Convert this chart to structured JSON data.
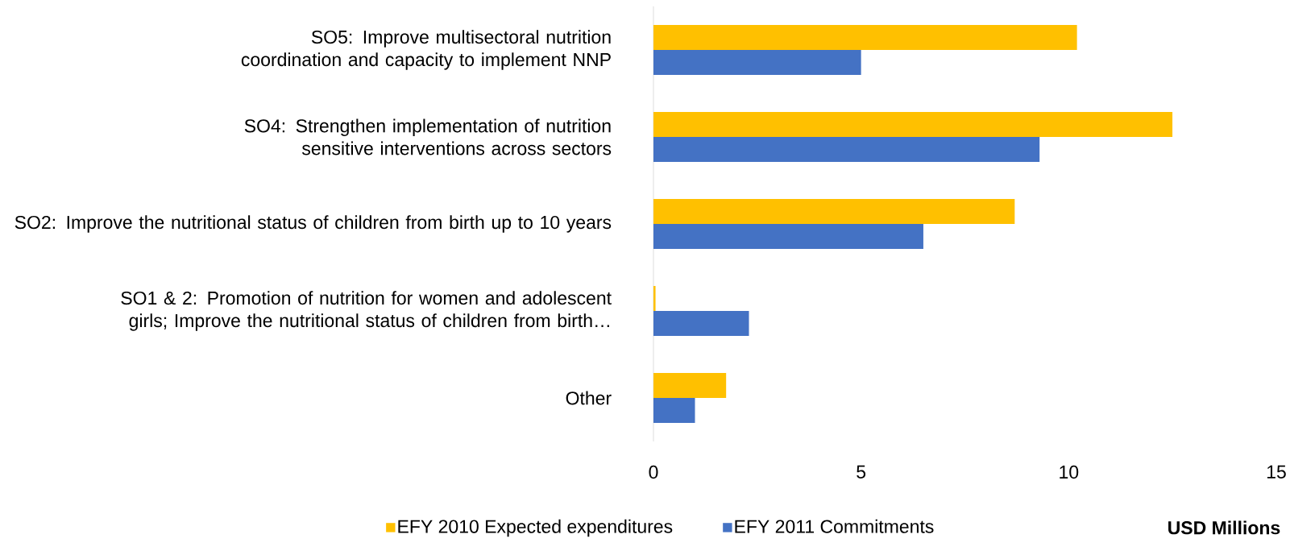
{
  "chart_data": {
    "type": "bar",
    "orientation": "horizontal",
    "categories": [
      "SO5: Improve multisectoral nutrition coordination and capacity to implement NNP",
      "SO4: Strengthen implementation of nutrition sensitive interventions across sectors",
      "SO2: Improve the nutritional status of children from birth up to 10 years",
      "SO1 & 2: Promotion of nutrition for women and adolescent girls; Improve the nutritional status of children from birth…",
      "Other"
    ],
    "series": [
      {
        "name": "EFY 2010 Expected expenditures",
        "color": "#ffc000",
        "values": [
          10.2,
          12.5,
          8.7,
          0.05,
          1.75
        ]
      },
      {
        "name": "EFY 2011 Commitments",
        "color": "#4472c4",
        "values": [
          5.0,
          9.3,
          6.5,
          2.3,
          1.0
        ]
      }
    ],
    "xlabel": "USD Millions",
    "xlim": [
      0,
      15
    ],
    "xticks": [
      0,
      5,
      10,
      15
    ],
    "legend": "bottom",
    "grid": false
  }
}
